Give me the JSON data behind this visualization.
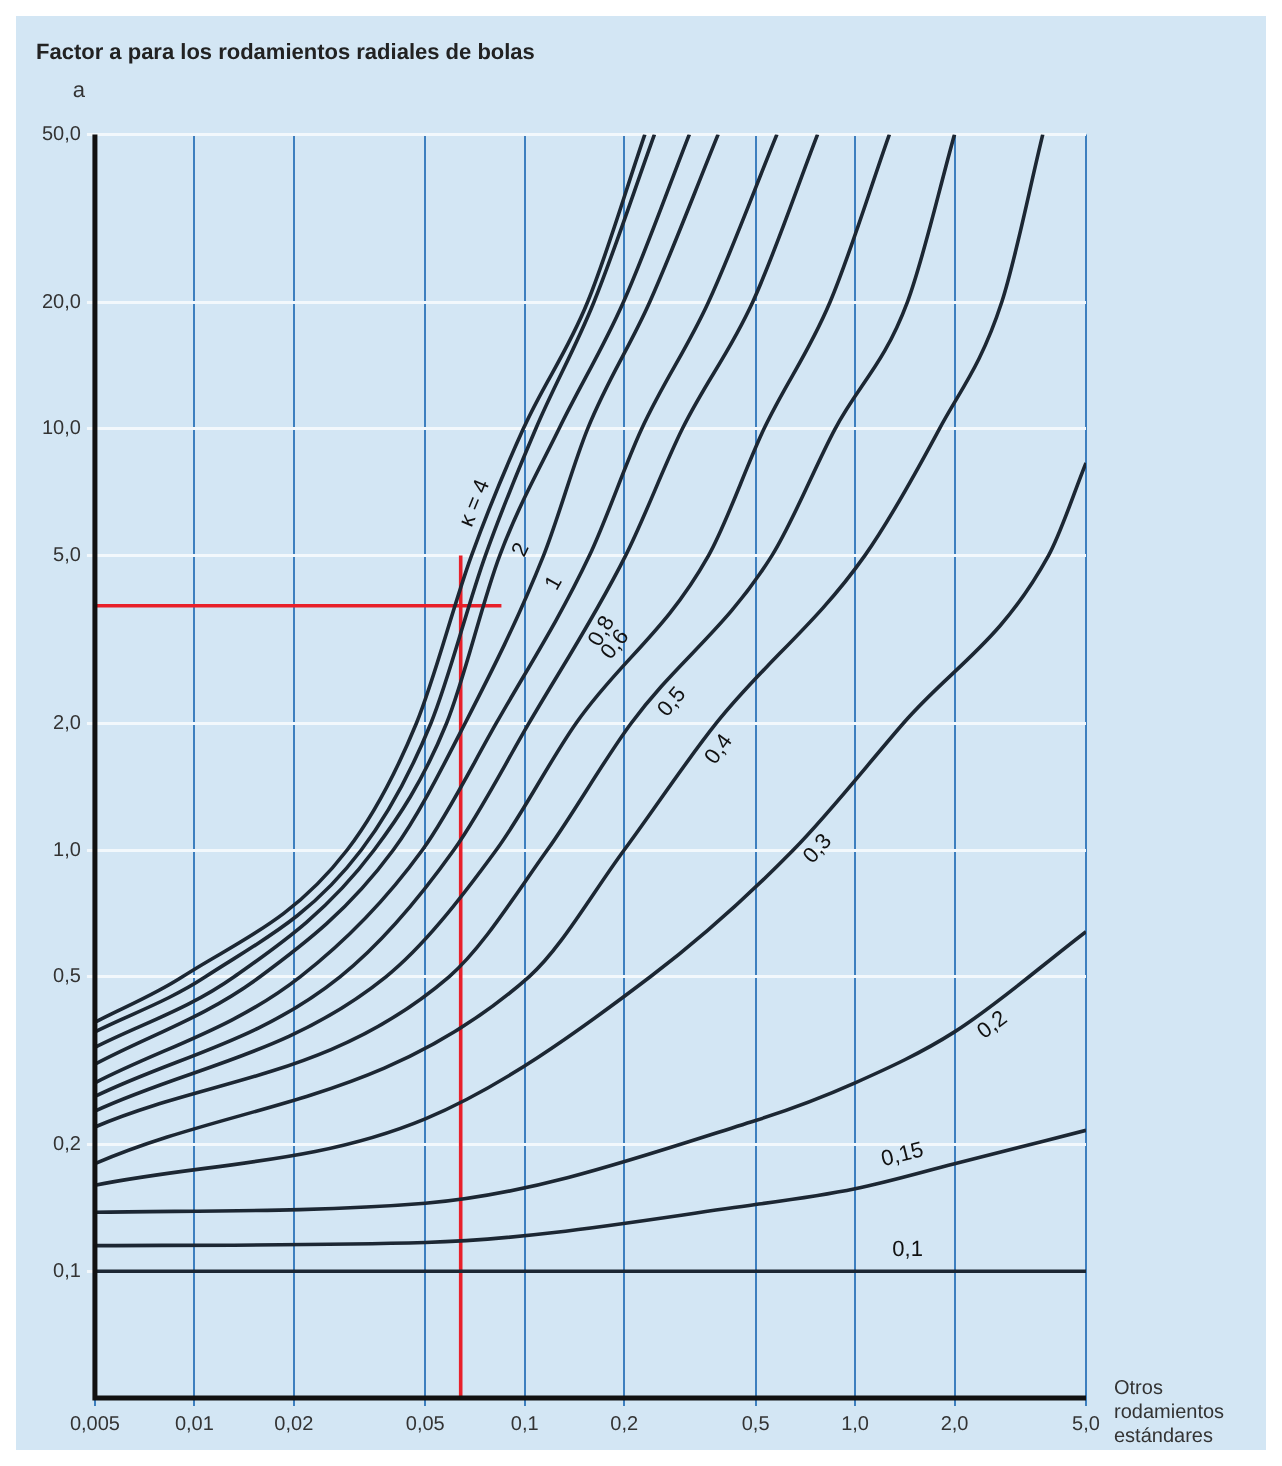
{
  "chart_data": {
    "type": "line",
    "title": "Factor a para los rodamientos radiales de bolas",
    "ylabel": "a",
    "xlabel": "Otros rodamientos estándares",
    "log": "xy",
    "grid": true,
    "legend": false,
    "marker": "none",
    "line_style": "solid",
    "xlim": [
      0.005,
      5
    ],
    "xticks": [
      {
        "value": 0.005,
        "label": "0,005"
      },
      {
        "value": 0.01,
        "label": "0,01"
      },
      {
        "value": 0.02,
        "label": "0,02"
      },
      {
        "value": 0.05,
        "label": "0,05"
      },
      {
        "value": 0.1,
        "label": "0,1"
      },
      {
        "value": 0.2,
        "label": "0,2"
      },
      {
        "value": 0.5,
        "label": "0,5"
      },
      {
        "value": 1,
        "label": "1,0"
      },
      {
        "value": 2,
        "label": "2,0"
      },
      {
        "value": 5,
        "label": "5,0"
      }
    ],
    "ylim": [
      0.05,
      50
    ],
    "yticks": [
      {
        "value": 0.1,
        "label": "0,1"
      },
      {
        "value": 0.2,
        "label": "0,2"
      },
      {
        "value": 0.5,
        "label": "0,5"
      },
      {
        "value": 1,
        "label": "1,0"
      },
      {
        "value": 2,
        "label": "2,0"
      },
      {
        "value": 5,
        "label": "5,0"
      },
      {
        "value": 10,
        "label": "10,0"
      },
      {
        "value": 20,
        "label": "20,0"
      },
      {
        "value": 50,
        "label": "50,0"
      }
    ],
    "series": [
      {
        "name": "κ = 4",
        "color": "#1c2733",
        "x": [
          0.005,
          0.0092,
          0.029,
          0.047,
          0.069,
          0.099,
          0.155,
          0.231
        ],
        "values": [
          0.39,
          0.5,
          1,
          2,
          5,
          10,
          20,
          50
        ]
      },
      {
        "color": "#1c2733",
        "x": [
          0.005,
          0.0108,
          0.032,
          0.052,
          0.076,
          0.108,
          0.162,
          0.247
        ],
        "values": [
          0.37,
          0.5,
          1,
          2,
          5,
          10,
          20,
          50
        ]
      },
      {
        "name": "2",
        "color": "#1c2733",
        "x": [
          0.005,
          0.0132,
          0.035,
          0.058,
          0.084,
          0.127,
          0.199,
          0.315
        ],
        "values": [
          0.34,
          0.5,
          1,
          2,
          5,
          10,
          20,
          50
        ]
      },
      {
        "color": "#1c2733",
        "x": [
          0.005,
          0.0158,
          0.04,
          0.066,
          0.114,
          0.155,
          0.239,
          0.385
        ],
        "values": [
          0.31,
          0.5,
          1,
          2,
          5,
          10,
          20,
          50
        ]
      },
      {
        "name": "1",
        "color": "#1c2733",
        "x": [
          0.005,
          0.0209,
          0.049,
          0.082,
          0.157,
          0.226,
          0.36,
          0.58
        ],
        "values": [
          0.28,
          0.5,
          1,
          2,
          5,
          10,
          20,
          50
        ]
      },
      {
        "name": "0,8",
        "color": "#1c2733",
        "x": [
          0.005,
          0.0276,
          0.061,
          0.103,
          0.202,
          0.3,
          0.49,
          0.77
        ],
        "values": [
          0.26,
          0.5,
          1,
          2,
          5,
          10,
          20,
          50
        ]
      },
      {
        "name": "0,6",
        "color": "#1c2733",
        "x": [
          0.005,
          0.038,
          0.082,
          0.143,
          0.36,
          0.53,
          0.84,
          1.27
        ],
        "values": [
          0.24,
          0.5,
          1,
          2,
          5,
          10,
          20,
          50
        ]
      },
      {
        "name": "0,5",
        "color": "#1c2733",
        "x": [
          0.005,
          0.059,
          0.117,
          0.21,
          0.56,
          0.87,
          1.44,
          2
        ],
        "values": [
          0.22,
          0.5,
          1,
          2,
          5,
          10,
          20,
          50
        ]
      },
      {
        "name": "0,4",
        "color": "#1c2733",
        "x": [
          0.005,
          0.103,
          0.2,
          0.38,
          1.07,
          1.8,
          2.78,
          3.7
        ],
        "values": [
          0.18,
          0.5,
          1,
          2,
          5,
          10,
          20,
          50
        ]
      },
      {
        "name": "0,3",
        "color": "#1c2733",
        "x": [
          0.005,
          0.05,
          0.24,
          0.65,
          1.4,
          3.85,
          5
        ],
        "values": [
          0.16,
          0.23,
          0.5,
          1,
          2,
          5,
          8.3
        ]
      },
      {
        "name": "0,2",
        "color": "#1c2733",
        "x": [
          0.005,
          0.05,
          0.5,
          1,
          2,
          5
        ],
        "values": [
          0.138,
          0.145,
          0.228,
          0.28,
          0.37,
          0.64
        ]
      },
      {
        "name": "0,15",
        "color": "#1c2733",
        "x": [
          0.005,
          0.05,
          0.5,
          1,
          2,
          5
        ],
        "values": [
          0.115,
          0.117,
          0.144,
          0.157,
          0.18,
          0.216
        ]
      },
      {
        "name": "0,1",
        "color": "#1c2733",
        "x": [
          0.005,
          1.5,
          5
        ],
        "values": [
          0.1,
          0.1,
          0.1
        ]
      },
      {
        "color": "#e8202a",
        "x": [
          0.064,
          0.064
        ],
        "values": [
          0.05,
          5
        ]
      },
      {
        "color": "#e8202a",
        "x": [
          0.005,
          0.085
        ],
        "values": [
          3.8,
          3.8
        ]
      }
    ]
  }
}
